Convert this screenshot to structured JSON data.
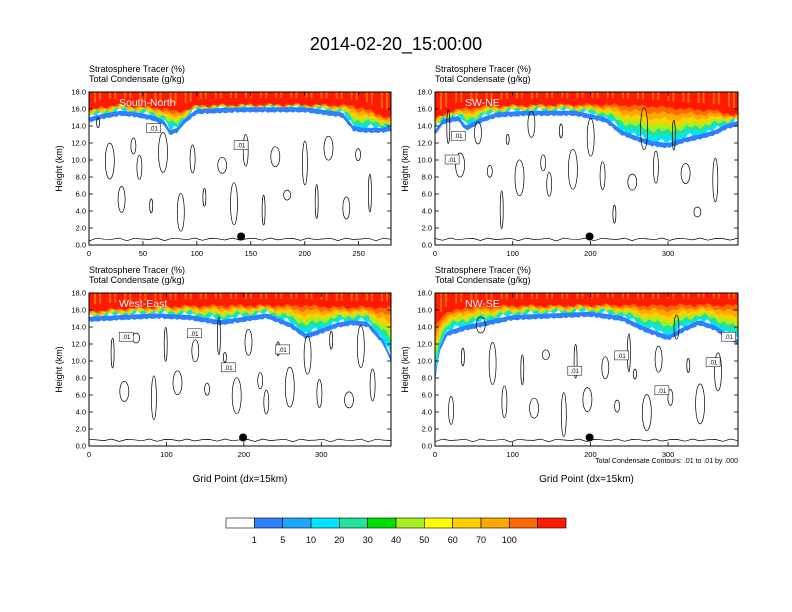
{
  "figure": {
    "title": "2014-02-20_15:00:00",
    "contour_note": "Total Condensate Contours: .01 to .01 by .000"
  },
  "colorbar": {
    "labels": [
      "1",
      "5",
      "10",
      "20",
      "30",
      "40",
      "50",
      "60",
      "70",
      "100"
    ],
    "colors": [
      "#ffffff",
      "#2f80ff",
      "#1aa7ff",
      "#00e5ff",
      "#22e39a",
      "#00e000",
      "#a6f020",
      "#ffff00",
      "#ffd000",
      "#ffa800",
      "#ff6a00",
      "#ff1a00"
    ]
  },
  "colors": {
    "strat_red": "#ff1a00",
    "contour": "#000000",
    "marker": "#000000"
  },
  "chart_data": [
    {
      "type": "heatmap",
      "panel": "South-North",
      "header_line1": "Stratosphere Tracer   (%)",
      "header_line2": "Total Condensate   (g/kg)",
      "ylabel": "Height (km)",
      "xlabel": "",
      "xlim": [
        0,
        280
      ],
      "ylim": [
        0,
        18
      ],
      "xticks": [
        "0",
        "50",
        "100",
        "150",
        "200",
        "250"
      ],
      "yticks": [
        "0.0",
        "2.0",
        "4.0",
        "6.0",
        "8.0",
        "10.0",
        "12.0",
        "14.0",
        "16.0",
        "18.0"
      ],
      "marker": [
        141,
        1.0
      ],
      "contour_tags": [
        {
          "label": ".01",
          "x": 60,
          "y": 13.7
        },
        {
          "label": ".01",
          "x": 141,
          "y": 11.7
        }
      ],
      "tropopause": [
        [
          0,
          15.8
        ],
        [
          15,
          16.3
        ],
        [
          30,
          16.5
        ],
        [
          45,
          16.3
        ],
        [
          60,
          16.2
        ],
        [
          70,
          16.0
        ],
        [
          80,
          15.7
        ],
        [
          90,
          15.9
        ],
        [
          100,
          16.4
        ],
        [
          140,
          16.5
        ],
        [
          200,
          16.5
        ],
        [
          240,
          16.4
        ],
        [
          255,
          16.1
        ],
        [
          265,
          15.5
        ],
        [
          272,
          15.2
        ],
        [
          280,
          15.0
        ]
      ],
      "cyan_base": [
        [
          0,
          15.0
        ],
        [
          8,
          15.3
        ],
        [
          20,
          15.6
        ],
        [
          30,
          15.8
        ],
        [
          45,
          15.6
        ],
        [
          60,
          15.2
        ],
        [
          70,
          14.6
        ],
        [
          75,
          13.5
        ],
        [
          82,
          13.8
        ],
        [
          88,
          14.8
        ],
        [
          95,
          15.5
        ],
        [
          100,
          16.0
        ],
        [
          140,
          16.2
        ],
        [
          200,
          16.2
        ],
        [
          235,
          15.6
        ],
        [
          245,
          14.0
        ],
        [
          255,
          13.8
        ],
        [
          265,
          13.8
        ],
        [
          272,
          13.8
        ],
        [
          280,
          14.0
        ]
      ]
    },
    {
      "type": "heatmap",
      "panel": "SW-NE",
      "header_line1": "Stratosphere Tracer   (%)",
      "header_line2": "Total Condensate   (g/kg)",
      "ylabel": "Height (km)",
      "xlabel": "",
      "xlim": [
        0,
        390
      ],
      "ylim": [
        0,
        18
      ],
      "xticks": [
        "0",
        "100",
        "200",
        "300"
      ],
      "yticks": [
        "0.0",
        "2.0",
        "4.0",
        "6.0",
        "8.0",
        "10.0",
        "12.0",
        "14.0",
        "16.0",
        "18.0"
      ],
      "marker": [
        199,
        1.0
      ],
      "contour_tags": [
        {
          "label": ".01",
          "x": 30,
          "y": 12.8
        },
        {
          "label": ".01",
          "x": 22,
          "y": 10.0
        }
      ],
      "tropopause": [
        [
          0,
          14.8
        ],
        [
          20,
          15.8
        ],
        [
          60,
          16.3
        ],
        [
          100,
          16.4
        ],
        [
          160,
          16.5
        ],
        [
          220,
          16.5
        ],
        [
          280,
          16.3
        ],
        [
          320,
          16.0
        ],
        [
          360,
          15.8
        ],
        [
          390,
          15.2
        ]
      ],
      "cyan_base": [
        [
          0,
          13.5
        ],
        [
          10,
          14.8
        ],
        [
          30,
          15.2
        ],
        [
          40,
          14.0
        ],
        [
          60,
          15.0
        ],
        [
          80,
          15.6
        ],
        [
          120,
          15.8
        ],
        [
          180,
          15.8
        ],
        [
          220,
          15.0
        ],
        [
          240,
          13.5
        ],
        [
          260,
          12.8
        ],
        [
          280,
          12.2
        ],
        [
          300,
          12.0
        ],
        [
          320,
          12.6
        ],
        [
          340,
          13.0
        ],
        [
          360,
          13.5
        ],
        [
          375,
          14.2
        ],
        [
          390,
          14.6
        ]
      ]
    },
    {
      "type": "heatmap",
      "panel": "West-East",
      "header_line1": "Stratosphere Tracer   (%)",
      "header_line2": "Total Condensate   (g/kg)",
      "ylabel": "Height (km)",
      "xlabel": "Grid Point (dx=15km)",
      "xlim": [
        0,
        390
      ],
      "ylim": [
        0,
        18
      ],
      "xticks": [
        "0",
        "100",
        "200",
        "300"
      ],
      "yticks": [
        "0.0",
        "2.0",
        "4.0",
        "6.0",
        "8.0",
        "10.0",
        "12.0",
        "14.0",
        "16.0",
        "18.0"
      ],
      "marker": [
        199,
        1.0
      ],
      "contour_tags": [
        {
          "label": ".01",
          "x": 48,
          "y": 12.8
        },
        {
          "label": ".01",
          "x": 136,
          "y": 13.2
        },
        {
          "label": ".01",
          "x": 180,
          "y": 9.2
        },
        {
          "label": ".01",
          "x": 250,
          "y": 11.3
        }
      ],
      "tropopause": [
        [
          0,
          15.8
        ],
        [
          50,
          16.2
        ],
        [
          100,
          16.4
        ],
        [
          160,
          16.5
        ],
        [
          220,
          16.5
        ],
        [
          280,
          16.5
        ],
        [
          320,
          16.3
        ],
        [
          360,
          16.3
        ],
        [
          390,
          16.2
        ]
      ],
      "cyan_base": [
        [
          0,
          15.2
        ],
        [
          40,
          15.4
        ],
        [
          90,
          15.6
        ],
        [
          130,
          15.4
        ],
        [
          170,
          14.8
        ],
        [
          200,
          15.2
        ],
        [
          230,
          15.6
        ],
        [
          260,
          14.5
        ],
        [
          280,
          13.2
        ],
        [
          300,
          13.8
        ],
        [
          320,
          14.5
        ],
        [
          340,
          14.8
        ],
        [
          360,
          14.6
        ],
        [
          380,
          12.5
        ],
        [
          390,
          10.5
        ]
      ]
    },
    {
      "type": "heatmap",
      "panel": "NW-SE",
      "header_line1": "Stratosphere Tracer   (%)",
      "header_line2": "Total Condensate   (g/kg)",
      "ylabel": "Height (km)",
      "xlabel": "Grid Point (dx=15km)",
      "xlim": [
        0,
        390
      ],
      "ylim": [
        0,
        18
      ],
      "xticks": [
        "0",
        "100",
        "200",
        "300"
      ],
      "yticks": [
        "0.0",
        "2.0",
        "4.0",
        "6.0",
        "8.0",
        "10.0",
        "12.0",
        "14.0",
        "16.0",
        "18.0"
      ],
      "marker": [
        199,
        1.0
      ],
      "contour_tags": [
        {
          "label": ".01",
          "x": 240,
          "y": 10.6
        },
        {
          "label": ".01",
          "x": 180,
          "y": 8.8
        },
        {
          "label": ".01",
          "x": 292,
          "y": 6.5
        },
        {
          "label": ".01",
          "x": 358,
          "y": 9.8
        },
        {
          "label": ".01",
          "x": 378,
          "y": 12.8
        }
      ],
      "tropopause": [
        [
          0,
          14.0
        ],
        [
          10,
          15.5
        ],
        [
          40,
          16.3
        ],
        [
          100,
          16.5
        ],
        [
          160,
          16.5
        ],
        [
          220,
          16.6
        ],
        [
          280,
          16.5
        ],
        [
          340,
          16.6
        ],
        [
          390,
          16.5
        ]
      ],
      "cyan_base": [
        [
          0,
          8.0
        ],
        [
          5,
          11.5
        ],
        [
          15,
          13.5
        ],
        [
          40,
          14.2
        ],
        [
          70,
          14.8
        ],
        [
          100,
          15.4
        ],
        [
          150,
          15.6
        ],
        [
          200,
          15.8
        ],
        [
          240,
          15.3
        ],
        [
          270,
          14.0
        ],
        [
          300,
          13.0
        ],
        [
          320,
          14.0
        ],
        [
          340,
          14.8
        ],
        [
          360,
          14.2
        ],
        [
          380,
          13.0
        ],
        [
          390,
          12.5
        ]
      ]
    }
  ]
}
